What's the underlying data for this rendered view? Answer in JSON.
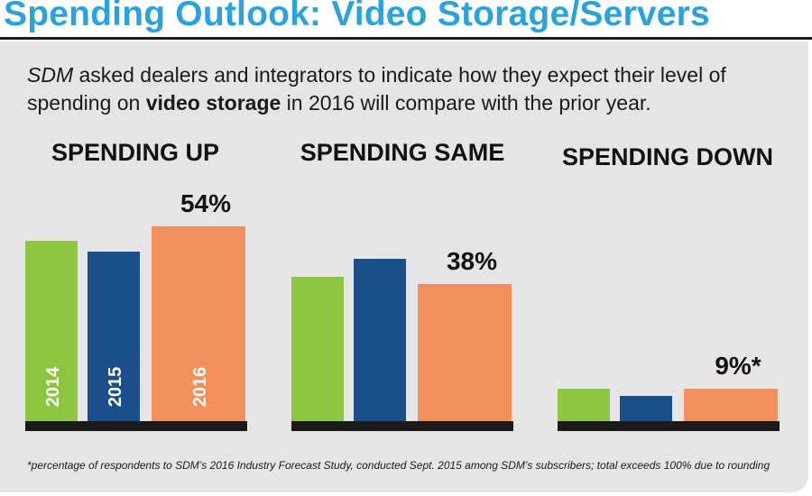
{
  "header": {
    "title": "Spending Outlook: Video Storage/Servers"
  },
  "intro": {
    "part1": "SDM",
    "part2": " asked dealers and integrators to indicate how they expect their level of spending on ",
    "part3": "video storage",
    "part4": " in 2016 will compare with the prior year."
  },
  "footnote": "*percentage of respondents to SDM’s 2016 Industry Forecast Study, conducted Sept. 2015 among SDM’s subscribers; total exceeds 100% due to rounding",
  "colors": {
    "title": "#2aa3dd",
    "panel": "#e5e5e7",
    "s2014": "#8cc63f",
    "s2015": "#1b4f8c",
    "s2016": "#f28f5a",
    "baseline": "#1a1a1a"
  },
  "chart_data": {
    "type": "bar",
    "title": "Spending Outlook: Video Storage/Servers",
    "ylabel": "",
    "ylim": [
      0,
      60
    ],
    "categories": [
      "SPENDING UP",
      "SPENDING SAME",
      "SPENDING DOWN"
    ],
    "series": [
      {
        "name": "2014",
        "values": [
          50,
          40,
          9
        ],
        "color": "#8cc63f"
      },
      {
        "name": "2015",
        "values": [
          47,
          45,
          7
        ],
        "color": "#1b4f8c"
      },
      {
        "name": "2016",
        "values": [
          54,
          38,
          9
        ],
        "color": "#f28f5a"
      }
    ],
    "data_labels": [
      "54%",
      "38%",
      "9%*"
    ],
    "in_bar_labels": [
      "2014",
      "2015",
      "2016"
    ]
  }
}
